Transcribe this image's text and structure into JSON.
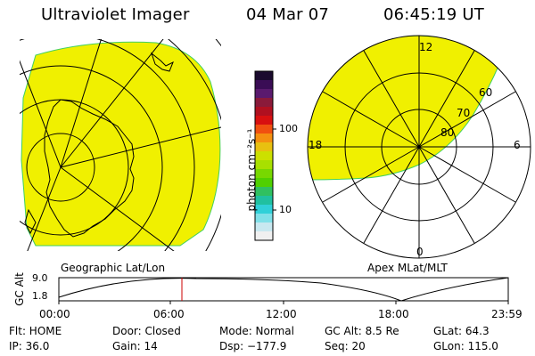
{
  "header": {
    "instrument": "Ultraviolet Imager",
    "date": "04 Mar 07",
    "time": "06:45:19 UT"
  },
  "colorbar": {
    "unit_label": "photon cm⁻²s⁻¹",
    "ticks": [
      "100",
      "10"
    ],
    "colors": [
      "#1a0a2e",
      "#3a0d55",
      "#5a1a6e",
      "#8a1a3a",
      "#b01020",
      "#d81010",
      "#f05010",
      "#f49010",
      "#e8c010",
      "#cce000",
      "#a8e000",
      "#78d800",
      "#50d000",
      "#30c060",
      "#20c0a0",
      "#30d0d8",
      "#80e0e8",
      "#c8e8f0",
      "#f0f0f0"
    ]
  },
  "left_map": {
    "caption": "Geographic Lat/Lon",
    "fill_color": "#f0f000"
  },
  "right_map": {
    "caption": "Apex MLat/MLT",
    "mlt_labels": {
      "top": "12",
      "left": "18",
      "right": "6",
      "bottom": "0"
    },
    "lat_labels": [
      "60",
      "70",
      "80"
    ],
    "fill_color": "#f0f000"
  },
  "timeline": {
    "ylabel": "GC Alt",
    "y_ticks": [
      "9.0",
      "1.8"
    ],
    "x_ticks": [
      "00:00",
      "06:00",
      "12:00",
      "18:00",
      "23:59"
    ],
    "marker_color": "#cc0000"
  },
  "status": {
    "row1": [
      "Flt: HOME",
      "Door: Closed",
      "Mode: Normal",
      "GC Alt: 8.5 Re",
      "GLat:  64.3"
    ],
    "row2": [
      "IP: 36.0",
      "Gain: 14",
      "Dsp: −177.9",
      "Seq: 20",
      "GLon: 115.0"
    ]
  }
}
